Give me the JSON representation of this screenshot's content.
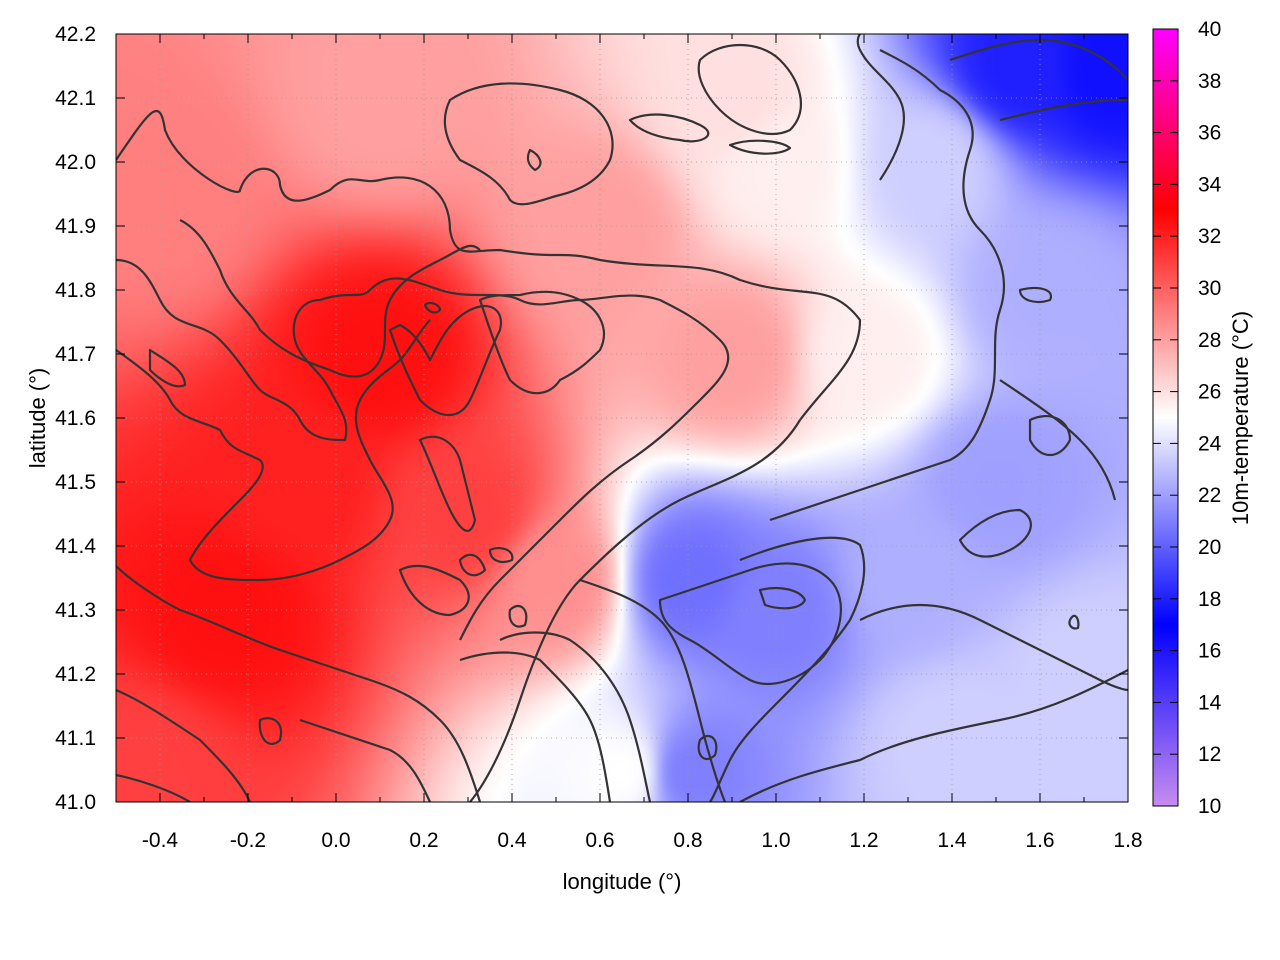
{
  "chart_data": {
    "type": "heatmap",
    "title": "",
    "xlabel": "longitude (°)",
    "ylabel": "latitude (°)",
    "colorbar_label": "10m-temperature (°C)",
    "xlim": [
      -0.5,
      1.8
    ],
    "ylim": [
      41.0,
      42.2
    ],
    "x_ticks": [
      "-0.4",
      "-0.2",
      "0.0",
      "0.2",
      "0.4",
      "0.6",
      "0.8",
      "1.0",
      "1.2",
      "1.4",
      "1.6",
      "1.8"
    ],
    "y_ticks": [
      "41.0",
      "41.1",
      "41.2",
      "41.3",
      "41.4",
      "41.5",
      "41.6",
      "41.7",
      "41.8",
      "41.9",
      "42.0",
      "42.1",
      "42.2"
    ],
    "colorbar_range": [
      10,
      40
    ],
    "colorbar_ticks": [
      "10",
      "12",
      "14",
      "16",
      "18",
      "20",
      "22",
      "24",
      "26",
      "28",
      "30",
      "32",
      "34",
      "36",
      "38",
      "40"
    ],
    "colormap": [
      {
        "value": 10,
        "color": "#c78cf0"
      },
      {
        "value": 17,
        "color": "#0000ff"
      },
      {
        "value": 25,
        "color": "#ffffff"
      },
      {
        "value": 33,
        "color": "#ff0000"
      },
      {
        "value": 40,
        "color": "#ff00ff"
      }
    ],
    "grid": true,
    "contours": true,
    "field_samples": [
      {
        "lon": -0.25,
        "lat": 41.3,
        "temp": 32.5
      },
      {
        "lon": 0.1,
        "lat": 41.7,
        "temp": 32.5
      },
      {
        "lon": -0.1,
        "lat": 41.5,
        "temp": 32
      },
      {
        "lon": 0.3,
        "lat": 41.45,
        "temp": 31
      },
      {
        "lon": -0.4,
        "lat": 41.95,
        "temp": 29
      },
      {
        "lon": -0.45,
        "lat": 41.05,
        "temp": 31
      },
      {
        "lon": 0.1,
        "lat": 42.1,
        "temp": 28
      },
      {
        "lon": 0.6,
        "lat": 41.9,
        "temp": 28
      },
      {
        "lon": 0.5,
        "lat": 41.35,
        "temp": 28.5
      },
      {
        "lon": 0.9,
        "lat": 41.7,
        "temp": 28
      },
      {
        "lon": 1.2,
        "lat": 41.7,
        "temp": 25.5
      },
      {
        "lon": 1.0,
        "lat": 42.0,
        "temp": 25.5
      },
      {
        "lon": 0.9,
        "lat": 42.1,
        "temp": 26
      },
      {
        "lon": 0.65,
        "lat": 41.05,
        "temp": 25
      },
      {
        "lon": 0.8,
        "lat": 41.35,
        "temp": 20.5
      },
      {
        "lon": 1.0,
        "lat": 41.3,
        "temp": 21
      },
      {
        "lon": 0.8,
        "lat": 41.05,
        "temp": 21
      },
      {
        "lon": 1.4,
        "lat": 41.1,
        "temp": 23.5
      },
      {
        "lon": 1.5,
        "lat": 41.5,
        "temp": 22
      },
      {
        "lon": 1.6,
        "lat": 41.8,
        "temp": 22.5
      },
      {
        "lon": 1.55,
        "lat": 42.15,
        "temp": 18
      },
      {
        "lon": 1.75,
        "lat": 42.15,
        "temp": 17.5
      },
      {
        "lon": 1.3,
        "lat": 41.35,
        "temp": 22.5
      },
      {
        "lon": 1.7,
        "lat": 41.2,
        "temp": 23.5
      },
      {
        "lon": 1.35,
        "lat": 42.0,
        "temp": 23.5
      }
    ]
  }
}
